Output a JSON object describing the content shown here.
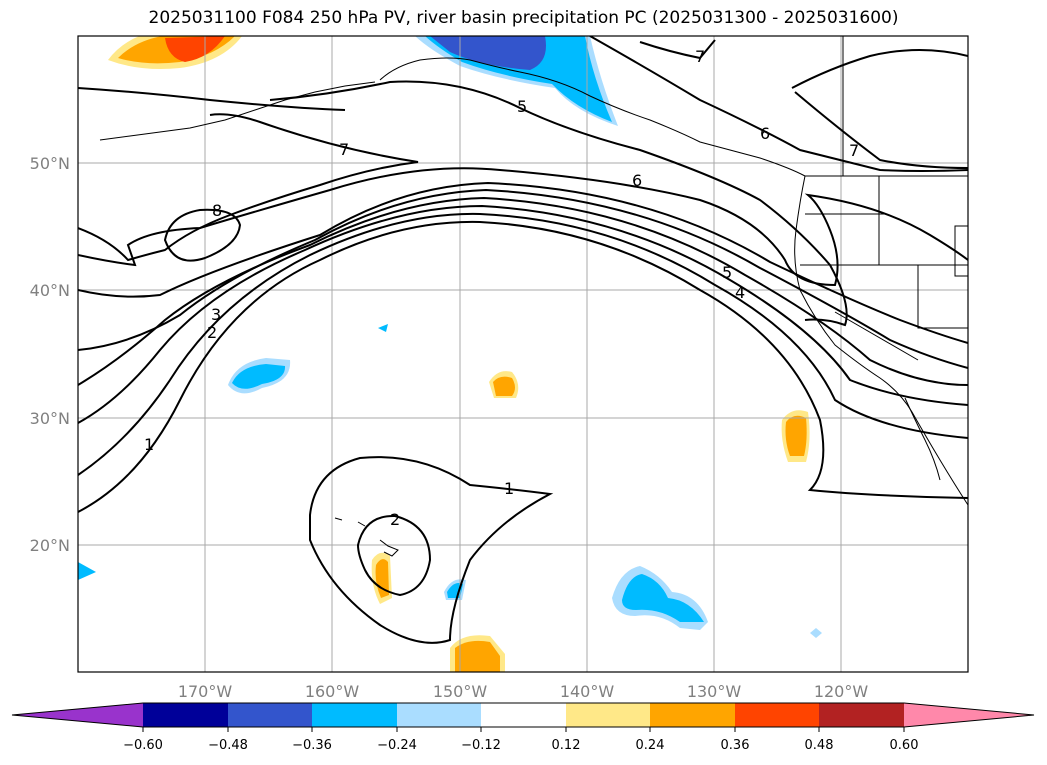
{
  "title": "2025031100 F084 250 hPa PV, river basin precipitation PC (2025031300 - 2025031600)",
  "lat_labels": [
    "50°N",
    "40°N",
    "30°N",
    "20°N"
  ],
  "lon_labels": [
    "170°W",
    "160°W",
    "150°W",
    "140°W",
    "130°W",
    "120°W"
  ],
  "contour_labels": [
    "1",
    "1",
    "2",
    "2",
    "3",
    "4",
    "5",
    "5",
    "6",
    "6",
    "7",
    "7",
    "7",
    "8"
  ],
  "colorbar": {
    "ticks": [
      "−0.60",
      "−0.48",
      "−0.36",
      "−0.24",
      "−0.12",
      "0.12",
      "0.24",
      "0.36",
      "0.48",
      "0.60"
    ],
    "colors": [
      "#9933cc",
      "#000099",
      "#3355cc",
      "#00bbff",
      "#aaddff",
      "#ffffff",
      "#ffe888",
      "#ffa500",
      "#ff4400",
      "#b22222",
      "#ff88aa"
    ]
  },
  "chart_data": {
    "type": "heatmap",
    "map_extent": {
      "lon": [
        -180,
        -110
      ],
      "lat": [
        10,
        60
      ]
    },
    "contour_field": "250 hPa PV",
    "contour_levels": [
      1,
      2,
      3,
      4,
      5,
      6,
      7,
      8
    ],
    "shaded_field": "river basin precipitation PC",
    "shading_levels": [
      -0.6,
      -0.48,
      -0.36,
      -0.24,
      -0.12,
      0.12,
      0.24,
      0.36,
      0.48,
      0.6
    ]
  }
}
